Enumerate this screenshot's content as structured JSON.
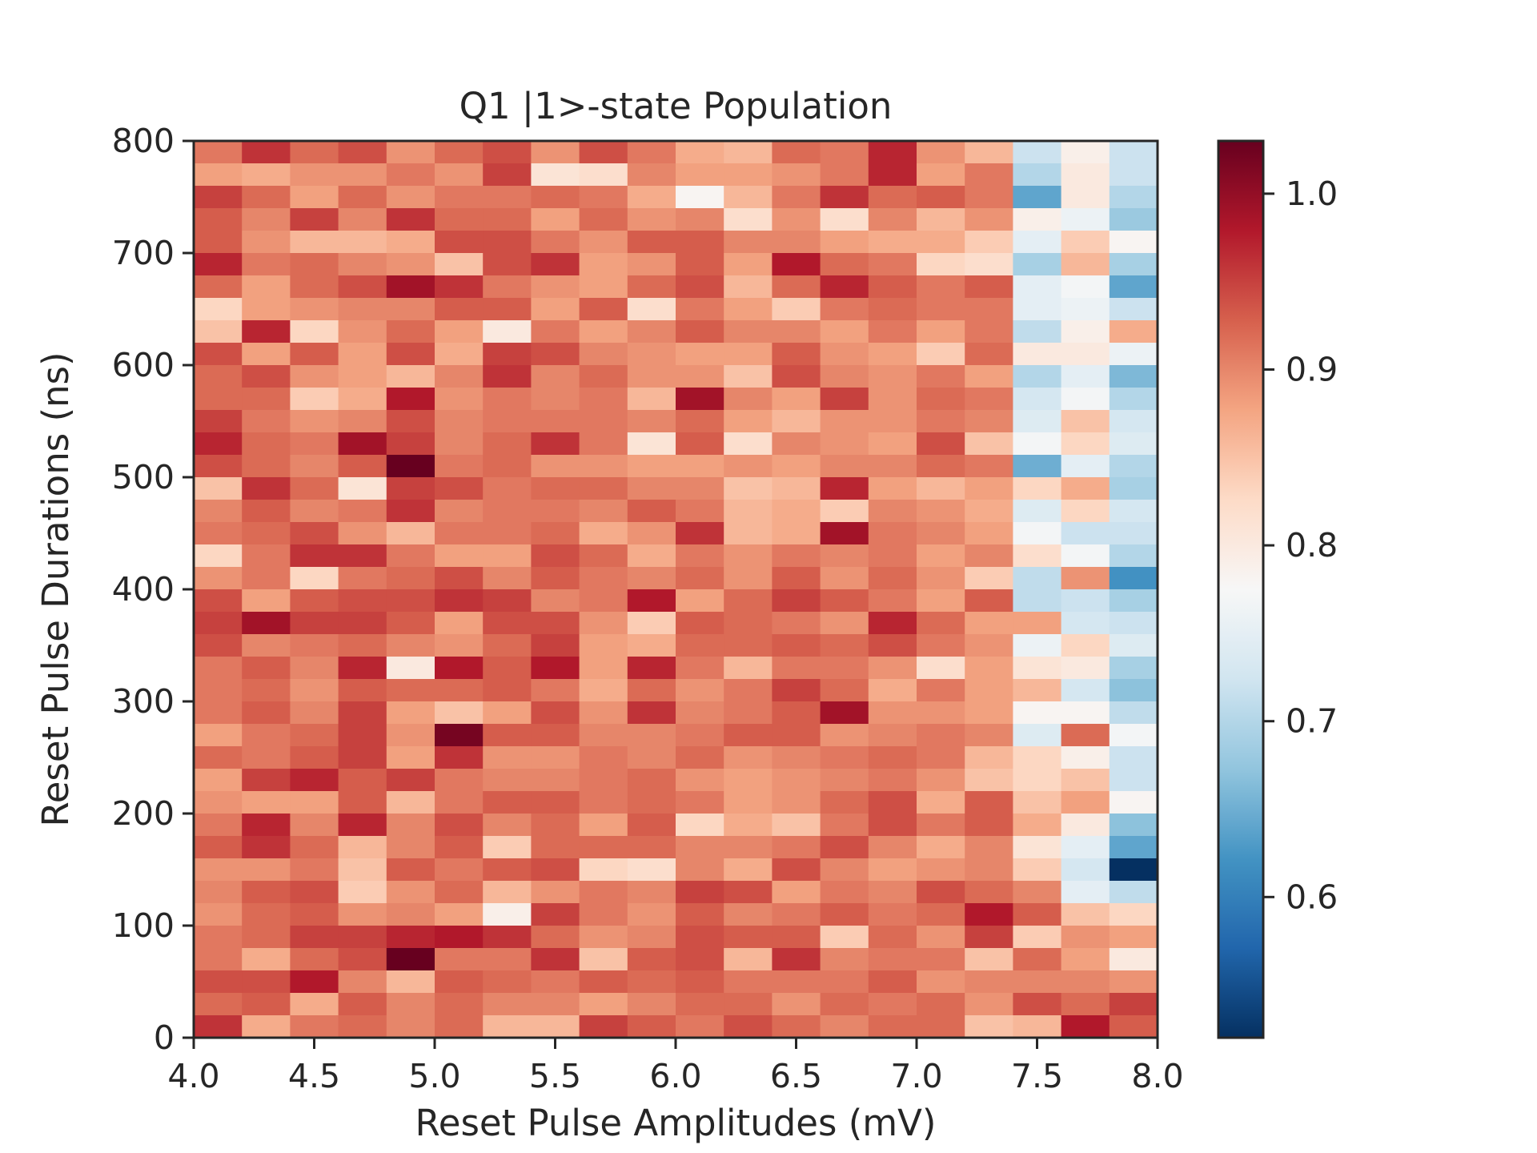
{
  "chart_data": {
    "type": "heatmap",
    "title": "Q1 |1>-state Population",
    "xlabel": "Reset Pulse Amplitudes (mV)",
    "ylabel": "Reset Pulse Durations (ns)",
    "xlim": [
      4.0,
      8.0
    ],
    "ylim": [
      0,
      800
    ],
    "x_ticks": [
      "4.0",
      "4.5",
      "5.0",
      "5.5",
      "6.0",
      "6.5",
      "7.0",
      "7.5",
      "8.0"
    ],
    "y_ticks": [
      "0",
      "100",
      "200",
      "300",
      "400",
      "500",
      "600",
      "700",
      "800"
    ],
    "colorbar": {
      "colormap": "RdBu_r",
      "vmin": 0.52,
      "vmax": 1.03,
      "ticks": [
        "0.6",
        "0.7",
        "0.8",
        "0.9",
        "1.0"
      ]
    },
    "grid": false,
    "columns": 20,
    "rows_count": 40,
    "row_order": "top-to-bottom (800 ns first)",
    "rows": [
      [
        0.91,
        0.96,
        0.92,
        0.94,
        0.89,
        0.92,
        0.94,
        0.89,
        0.94,
        0.91,
        0.87,
        0.86,
        0.92,
        0.91,
        0.97,
        0.89,
        0.86,
        0.72,
        0.79,
        0.72
      ],
      [
        0.88,
        0.87,
        0.89,
        0.89,
        0.91,
        0.89,
        0.95,
        0.81,
        0.82,
        0.9,
        0.88,
        0.88,
        0.89,
        0.91,
        0.97,
        0.88,
        0.91,
        0.7,
        0.8,
        0.72
      ],
      [
        0.95,
        0.92,
        0.88,
        0.92,
        0.89,
        0.91,
        0.91,
        0.92,
        0.91,
        0.87,
        0.78,
        0.86,
        0.91,
        0.96,
        0.92,
        0.93,
        0.91,
        0.64,
        0.8,
        0.7
      ],
      [
        0.93,
        0.9,
        0.95,
        0.9,
        0.96,
        0.92,
        0.92,
        0.88,
        0.92,
        0.89,
        0.9,
        0.82,
        0.89,
        0.82,
        0.9,
        0.86,
        0.89,
        0.79,
        0.76,
        0.68
      ],
      [
        0.93,
        0.89,
        0.86,
        0.86,
        0.87,
        0.94,
        0.94,
        0.91,
        0.89,
        0.93,
        0.93,
        0.9,
        0.9,
        0.88,
        0.87,
        0.87,
        0.84,
        0.75,
        0.84,
        0.78
      ],
      [
        0.97,
        0.91,
        0.92,
        0.9,
        0.89,
        0.85,
        0.94,
        0.96,
        0.88,
        0.89,
        0.93,
        0.88,
        0.98,
        0.92,
        0.91,
        0.83,
        0.82,
        0.69,
        0.86,
        0.69
      ],
      [
        0.92,
        0.88,
        0.92,
        0.94,
        0.99,
        0.96,
        0.91,
        0.89,
        0.88,
        0.92,
        0.94,
        0.86,
        0.92,
        0.97,
        0.93,
        0.91,
        0.93,
        0.75,
        0.77,
        0.64
      ],
      [
        0.83,
        0.88,
        0.89,
        0.9,
        0.9,
        0.93,
        0.93,
        0.88,
        0.93,
        0.82,
        0.91,
        0.88,
        0.84,
        0.91,
        0.92,
        0.91,
        0.91,
        0.75,
        0.76,
        0.72
      ],
      [
        0.85,
        0.97,
        0.83,
        0.89,
        0.92,
        0.88,
        0.8,
        0.91,
        0.88,
        0.9,
        0.93,
        0.9,
        0.9,
        0.88,
        0.91,
        0.88,
        0.91,
        0.71,
        0.79,
        0.87
      ],
      [
        0.94,
        0.88,
        0.93,
        0.88,
        0.94,
        0.87,
        0.95,
        0.94,
        0.9,
        0.89,
        0.88,
        0.88,
        0.93,
        0.89,
        0.88,
        0.84,
        0.92,
        0.8,
        0.8,
        0.76
      ],
      [
        0.92,
        0.94,
        0.89,
        0.88,
        0.86,
        0.9,
        0.96,
        0.9,
        0.92,
        0.89,
        0.89,
        0.85,
        0.94,
        0.9,
        0.89,
        0.91,
        0.88,
        0.7,
        0.75,
        0.66
      ],
      [
        0.92,
        0.92,
        0.84,
        0.87,
        0.98,
        0.89,
        0.91,
        0.9,
        0.91,
        0.86,
        0.99,
        0.9,
        0.88,
        0.95,
        0.89,
        0.92,
        0.91,
        0.73,
        0.77,
        0.7
      ],
      [
        0.95,
        0.91,
        0.89,
        0.9,
        0.94,
        0.9,
        0.91,
        0.91,
        0.91,
        0.9,
        0.92,
        0.88,
        0.86,
        0.89,
        0.89,
        0.91,
        0.9,
        0.74,
        0.85,
        0.73
      ],
      [
        0.97,
        0.92,
        0.91,
        0.99,
        0.95,
        0.9,
        0.92,
        0.96,
        0.91,
        0.81,
        0.93,
        0.82,
        0.9,
        0.89,
        0.88,
        0.94,
        0.85,
        0.77,
        0.83,
        0.74
      ],
      [
        0.94,
        0.92,
        0.9,
        0.93,
        1.03,
        0.91,
        0.92,
        0.89,
        0.89,
        0.88,
        0.88,
        0.89,
        0.88,
        0.9,
        0.9,
        0.92,
        0.91,
        0.65,
        0.75,
        0.7
      ],
      [
        0.85,
        0.96,
        0.92,
        0.81,
        0.95,
        0.94,
        0.91,
        0.92,
        0.92,
        0.9,
        0.9,
        0.85,
        0.86,
        0.97,
        0.88,
        0.86,
        0.88,
        0.83,
        0.87,
        0.69
      ],
      [
        0.9,
        0.93,
        0.9,
        0.91,
        0.96,
        0.9,
        0.91,
        0.91,
        0.9,
        0.93,
        0.91,
        0.86,
        0.87,
        0.84,
        0.9,
        0.89,
        0.87,
        0.74,
        0.83,
        0.73
      ],
      [
        0.91,
        0.92,
        0.94,
        0.89,
        0.86,
        0.91,
        0.91,
        0.92,
        0.87,
        0.89,
        0.96,
        0.86,
        0.87,
        0.99,
        0.91,
        0.9,
        0.88,
        0.77,
        0.72,
        0.72
      ],
      [
        0.83,
        0.91,
        0.96,
        0.96,
        0.91,
        0.88,
        0.88,
        0.94,
        0.92,
        0.87,
        0.91,
        0.89,
        0.91,
        0.9,
        0.91,
        0.88,
        0.9,
        0.82,
        0.77,
        0.7
      ],
      [
        0.89,
        0.91,
        0.83,
        0.91,
        0.92,
        0.94,
        0.9,
        0.93,
        0.91,
        0.9,
        0.92,
        0.89,
        0.93,
        0.89,
        0.92,
        0.89,
        0.84,
        0.71,
        0.89,
        0.62
      ],
      [
        0.94,
        0.88,
        0.93,
        0.94,
        0.94,
        0.96,
        0.95,
        0.9,
        0.91,
        0.98,
        0.88,
        0.92,
        0.95,
        0.93,
        0.91,
        0.88,
        0.93,
        0.71,
        0.72,
        0.69
      ],
      [
        0.95,
        0.99,
        0.95,
        0.95,
        0.93,
        0.88,
        0.94,
        0.94,
        0.89,
        0.84,
        0.93,
        0.92,
        0.91,
        0.89,
        0.97,
        0.92,
        0.88,
        0.88,
        0.73,
        0.72
      ],
      [
        0.94,
        0.9,
        0.91,
        0.92,
        0.9,
        0.89,
        0.92,
        0.95,
        0.88,
        0.87,
        0.92,
        0.92,
        0.93,
        0.92,
        0.94,
        0.91,
        0.89,
        0.76,
        0.83,
        0.74
      ],
      [
        0.91,
        0.93,
        0.9,
        0.97,
        0.8,
        0.98,
        0.93,
        0.98,
        0.88,
        0.97,
        0.91,
        0.86,
        0.91,
        0.91,
        0.89,
        0.82,
        0.88,
        0.81,
        0.8,
        0.69
      ],
      [
        0.91,
        0.92,
        0.89,
        0.93,
        0.92,
        0.92,
        0.93,
        0.91,
        0.87,
        0.92,
        0.89,
        0.91,
        0.95,
        0.92,
        0.87,
        0.91,
        0.88,
        0.86,
        0.73,
        0.67
      ],
      [
        0.91,
        0.93,
        0.9,
        0.95,
        0.88,
        0.85,
        0.88,
        0.94,
        0.89,
        0.96,
        0.9,
        0.91,
        0.93,
        0.99,
        0.89,
        0.89,
        0.88,
        0.78,
        0.78,
        0.71
      ],
      [
        0.88,
        0.91,
        0.92,
        0.95,
        0.89,
        1.02,
        0.93,
        0.93,
        0.9,
        0.9,
        0.91,
        0.93,
        0.93,
        0.89,
        0.9,
        0.91,
        0.9,
        0.74,
        0.92,
        0.77
      ],
      [
        0.92,
        0.91,
        0.93,
        0.95,
        0.88,
        0.96,
        0.89,
        0.89,
        0.91,
        0.9,
        0.92,
        0.89,
        0.9,
        0.91,
        0.92,
        0.91,
        0.86,
        0.83,
        0.79,
        0.72
      ],
      [
        0.88,
        0.95,
        0.97,
        0.93,
        0.95,
        0.91,
        0.9,
        0.9,
        0.91,
        0.92,
        0.89,
        0.88,
        0.89,
        0.9,
        0.91,
        0.89,
        0.85,
        0.83,
        0.85,
        0.72
      ],
      [
        0.89,
        0.88,
        0.88,
        0.93,
        0.86,
        0.91,
        0.93,
        0.93,
        0.91,
        0.92,
        0.91,
        0.88,
        0.89,
        0.92,
        0.94,
        0.87,
        0.93,
        0.85,
        0.88,
        0.78
      ],
      [
        0.91,
        0.97,
        0.9,
        0.97,
        0.9,
        0.94,
        0.9,
        0.92,
        0.88,
        0.93,
        0.83,
        0.87,
        0.85,
        0.91,
        0.94,
        0.91,
        0.93,
        0.87,
        0.8,
        0.67
      ],
      [
        0.93,
        0.96,
        0.92,
        0.86,
        0.9,
        0.93,
        0.84,
        0.92,
        0.92,
        0.92,
        0.9,
        0.9,
        0.91,
        0.94,
        0.9,
        0.87,
        0.9,
        0.81,
        0.75,
        0.64
      ],
      [
        0.89,
        0.89,
        0.91,
        0.85,
        0.93,
        0.91,
        0.93,
        0.94,
        0.83,
        0.82,
        0.9,
        0.87,
        0.94,
        0.9,
        0.88,
        0.89,
        0.9,
        0.84,
        0.73,
        0.52
      ],
      [
        0.9,
        0.93,
        0.94,
        0.84,
        0.89,
        0.92,
        0.86,
        0.89,
        0.91,
        0.9,
        0.95,
        0.94,
        0.88,
        0.91,
        0.9,
        0.94,
        0.92,
        0.9,
        0.75,
        0.71
      ],
      [
        0.89,
        0.92,
        0.93,
        0.89,
        0.9,
        0.88,
        0.79,
        0.95,
        0.91,
        0.89,
        0.93,
        0.9,
        0.91,
        0.93,
        0.91,
        0.92,
        0.98,
        0.93,
        0.85,
        0.83
      ],
      [
        0.91,
        0.92,
        0.95,
        0.95,
        0.97,
        0.98,
        0.96,
        0.92,
        0.89,
        0.9,
        0.94,
        0.93,
        0.93,
        0.84,
        0.92,
        0.89,
        0.95,
        0.84,
        0.89,
        0.88
      ],
      [
        0.91,
        0.87,
        0.92,
        0.94,
        1.03,
        0.91,
        0.91,
        0.96,
        0.85,
        0.93,
        0.94,
        0.86,
        0.96,
        0.9,
        0.91,
        0.91,
        0.85,
        0.92,
        0.88,
        0.8
      ],
      [
        0.94,
        0.94,
        0.98,
        0.9,
        0.86,
        0.93,
        0.92,
        0.91,
        0.93,
        0.92,
        0.93,
        0.91,
        0.91,
        0.91,
        0.93,
        0.89,
        0.9,
        0.9,
        0.9,
        0.89
      ],
      [
        0.92,
        0.93,
        0.87,
        0.93,
        0.9,
        0.92,
        0.9,
        0.9,
        0.88,
        0.9,
        0.92,
        0.92,
        0.89,
        0.92,
        0.91,
        0.92,
        0.89,
        0.94,
        0.92,
        0.95
      ],
      [
        0.96,
        0.87,
        0.91,
        0.92,
        0.9,
        0.92,
        0.86,
        0.86,
        0.95,
        0.93,
        0.91,
        0.94,
        0.92,
        0.9,
        0.92,
        0.92,
        0.85,
        0.86,
        0.98,
        0.93
      ]
    ]
  }
}
